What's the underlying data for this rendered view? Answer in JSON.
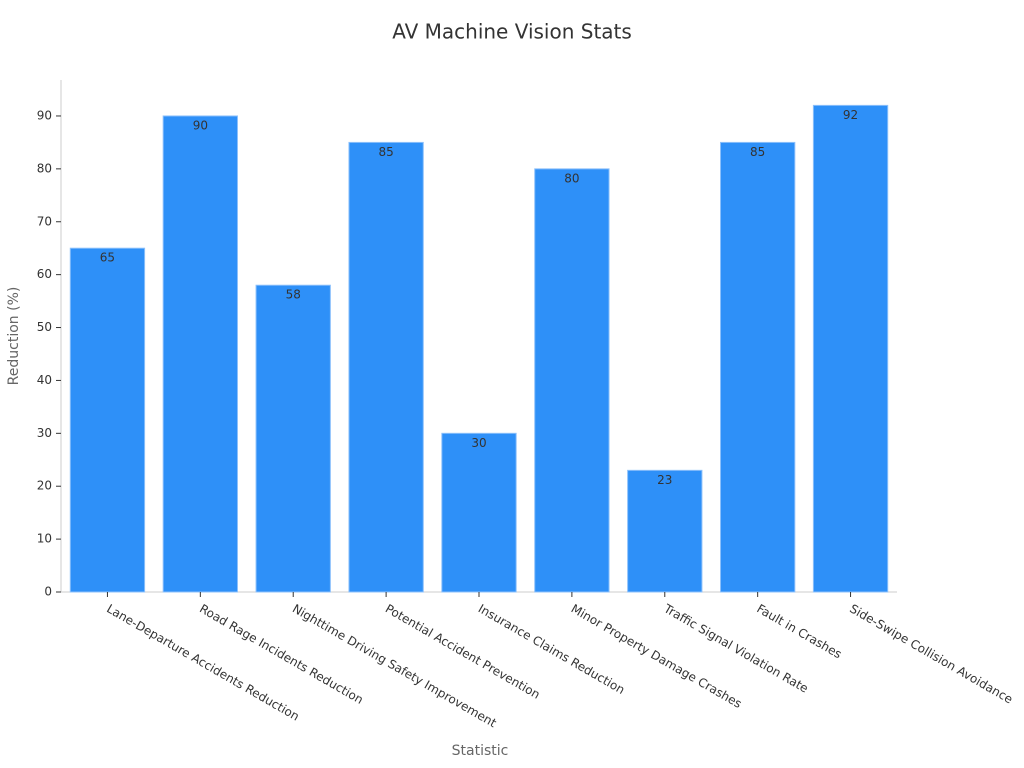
{
  "chart_data": {
    "type": "bar",
    "title": "AV Machine Vision Stats",
    "x_label": "Statistic",
    "y_label": "Reduction (%)",
    "categories": [
      "Lane-Departure Accidents Reduction",
      "Road Rage Incidents Reduction",
      "Nighttime Driving Safety Improvement",
      "Potential Accident Prevention",
      "Insurance Claims Reduction",
      "Minor Property Damage Crashes",
      "Traffic Signal Violation Rate",
      "Fault in Crashes",
      "Side-Swipe Collision Avoidance"
    ],
    "values": [
      65,
      90,
      58,
      85,
      30,
      80,
      23,
      85,
      92
    ],
    "color": "#2e90f8",
    "ylim": [
      0,
      96.8
    ],
    "yticks": [
      0,
      10,
      20,
      30,
      40,
      50,
      60,
      70,
      80,
      90
    ],
    "grid": false
  }
}
